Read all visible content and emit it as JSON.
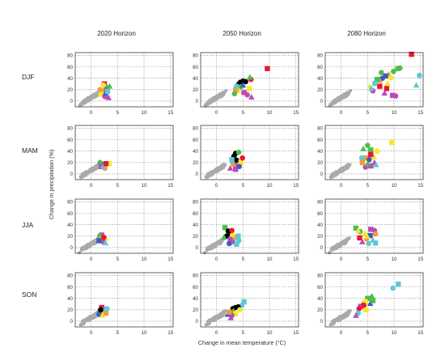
{
  "chart_data": {
    "type": "scatter",
    "layout": "grid of small multiples",
    "columns": [
      "2020 Horizon",
      "2050 Horizon",
      "2080 Horizon"
    ],
    "rows": [
      "DJF",
      "MAM",
      "JJA",
      "SON"
    ],
    "xlabel": "Change in mean temperature (°C)",
    "ylabel": "Change in precipitation (%)",
    "xlim": [
      -3,
      15.5
    ],
    "ylim": [
      -10,
      85
    ],
    "xticks": [
      "0",
      "5",
      "10",
      "15"
    ],
    "yticks": [
      "0",
      "20",
      "40",
      "60",
      "80"
    ],
    "grid": true,
    "colors": {
      "baseline": "#aaaaaa",
      "red": "#e8192c",
      "green": "#4dbd4d",
      "magenta": "#b84cb8",
      "yellow": "#f5e928",
      "orange": "#f49a3c",
      "blue": "#3a5dbf",
      "cyan": "#5ec8d8",
      "black": "#000000"
    },
    "panels": [
      {
        "row": "DJF",
        "column": "2020 Horizon",
        "points": [
          [
            2.5,
            30,
            "red"
          ],
          [
            2.8,
            25,
            "green"
          ],
          [
            2.2,
            18,
            "orange"
          ],
          [
            1.9,
            12,
            "yellow"
          ],
          [
            2.6,
            8,
            "magenta"
          ],
          [
            3.3,
            6,
            "magenta"
          ],
          [
            2.9,
            20,
            "magenta"
          ],
          [
            2.3,
            28,
            "yellow"
          ],
          [
            2.7,
            14,
            "blue"
          ],
          [
            3.1,
            17,
            "cyan"
          ],
          [
            1.7,
            20,
            "orange"
          ],
          [
            3.5,
            26,
            "green"
          ]
        ]
      },
      {
        "row": "DJF",
        "column": "2050 Horizon",
        "points": [
          [
            9.6,
            57,
            "red"
          ],
          [
            6.5,
            38,
            "red"
          ],
          [
            6.3,
            42,
            "green"
          ],
          [
            4.5,
            33,
            "black"
          ],
          [
            5,
            35,
            "black"
          ],
          [
            5.5,
            34,
            "black"
          ],
          [
            4.2,
            30,
            "black"
          ],
          [
            4.6,
            25,
            "green"
          ],
          [
            4.2,
            18,
            "yellow"
          ],
          [
            3.6,
            20,
            "orange"
          ],
          [
            5.8,
            11,
            "magenta"
          ],
          [
            6.6,
            7,
            "magenta"
          ],
          [
            5.2,
            15,
            "magenta"
          ],
          [
            3.8,
            26,
            "cyan"
          ],
          [
            5,
            28,
            "blue"
          ],
          [
            6.2,
            22,
            "yellow"
          ],
          [
            3.4,
            13,
            "green"
          ]
        ]
      },
      {
        "row": "DJF",
        "column": "2080 Horizon",
        "points": [
          [
            13.3,
            82,
            "red"
          ],
          [
            14.8,
            45,
            "cyan"
          ],
          [
            14.2,
            28,
            "cyan"
          ],
          [
            10.7,
            57,
            "green"
          ],
          [
            9.9,
            52,
            "green"
          ],
          [
            9,
            47,
            "orange"
          ],
          [
            8.4,
            44,
            "blue"
          ],
          [
            7.8,
            40,
            "blue"
          ],
          [
            7.3,
            36,
            "orange"
          ],
          [
            6.8,
            38,
            "green"
          ],
          [
            9.4,
            41,
            "yellow"
          ],
          [
            8.8,
            31,
            "yellow"
          ],
          [
            7.3,
            26,
            "red"
          ],
          [
            6,
            18,
            "magenta"
          ],
          [
            8.2,
            14,
            "magenta"
          ],
          [
            9.7,
            10,
            "magenta"
          ],
          [
            10.3,
            9,
            "magenta"
          ],
          [
            5.4,
            26,
            "yellow"
          ],
          [
            6.4,
            31,
            "cyan"
          ],
          [
            7.6,
            50,
            "green"
          ],
          [
            5.7,
            22,
            "cyan"
          ],
          [
            8.6,
            22,
            "red"
          ],
          [
            11.1,
            58,
            "green"
          ]
        ]
      },
      {
        "row": "MAM",
        "column": "2020 Horizon",
        "points": [
          [
            3.4,
            18,
            "yellow"
          ],
          [
            1.7,
            20,
            "green"
          ],
          [
            2.2,
            16,
            "blue"
          ],
          [
            1.9,
            13,
            "magenta"
          ],
          [
            2.6,
            10,
            "orange"
          ],
          [
            2.3,
            14,
            "cyan"
          ],
          [
            2.8,
            18,
            "red"
          ]
        ]
      },
      {
        "row": "MAM",
        "column": "2050 Horizon",
        "points": [
          [
            3.6,
            36,
            "black"
          ],
          [
            3.3,
            31,
            "black"
          ],
          [
            3.2,
            27,
            "black"
          ],
          [
            3.8,
            24,
            "black"
          ],
          [
            4.2,
            38,
            "green"
          ],
          [
            3.1,
            21,
            "green"
          ],
          [
            4.6,
            20,
            "yellow"
          ],
          [
            3.6,
            15,
            "magenta"
          ],
          [
            2.6,
            10,
            "magenta"
          ],
          [
            3.6,
            8,
            "magenta"
          ],
          [
            4.3,
            13,
            "blue"
          ],
          [
            3.2,
            17,
            "orange"
          ],
          [
            2.9,
            25,
            "cyan"
          ],
          [
            4.9,
            28,
            "red"
          ]
        ]
      },
      {
        "row": "MAM",
        "column": "2080 Horizon",
        "points": [
          [
            9.6,
            55,
            "yellow"
          ],
          [
            5,
            50,
            "green"
          ],
          [
            4.2,
            44,
            "green"
          ],
          [
            5.6,
            42,
            "green"
          ],
          [
            6.8,
            40,
            "yellow"
          ],
          [
            6.2,
            30,
            "yellow"
          ],
          [
            4.6,
            28,
            "orange"
          ],
          [
            5.3,
            25,
            "blue"
          ],
          [
            6.3,
            20,
            "magenta"
          ],
          [
            5.6,
            14,
            "magenta"
          ],
          [
            4.6,
            12,
            "magenta"
          ],
          [
            6.6,
            16,
            "cyan"
          ],
          [
            5.6,
            34,
            "red"
          ],
          [
            3.9,
            28,
            "cyan"
          ],
          [
            5,
            18,
            "green"
          ],
          [
            4,
            20,
            "orange"
          ]
        ]
      },
      {
        "row": "JJA",
        "column": "2020 Horizon",
        "points": [
          [
            2,
            22,
            "magenta"
          ],
          [
            1.6,
            20,
            "green"
          ],
          [
            2.8,
            16,
            "yellow"
          ],
          [
            1.9,
            15,
            "orange"
          ],
          [
            2.3,
            10,
            "magenta"
          ],
          [
            2.7,
            8,
            "cyan"
          ],
          [
            1.5,
            12,
            "blue"
          ],
          [
            2.4,
            18,
            "red"
          ]
        ]
      },
      {
        "row": "JJA",
        "column": "2050 Horizon",
        "points": [
          [
            1.6,
            35,
            "green"
          ],
          [
            2.2,
            29,
            "black"
          ],
          [
            2.6,
            24,
            "black"
          ],
          [
            1.9,
            20,
            "black"
          ],
          [
            3,
            22,
            "yellow"
          ],
          [
            3.6,
            18,
            "orange"
          ],
          [
            4.1,
            20,
            "cyan"
          ],
          [
            4.2,
            12,
            "cyan"
          ],
          [
            3.3,
            10,
            "magenta"
          ],
          [
            2.6,
            14,
            "magenta"
          ],
          [
            2.4,
            7,
            "blue"
          ],
          [
            1.4,
            18,
            "green"
          ],
          [
            3.8,
            6,
            "cyan"
          ],
          [
            2.9,
            30,
            "red"
          ]
        ]
      },
      {
        "row": "JJA",
        "column": "2080 Horizon",
        "points": [
          [
            2.8,
            34,
            "green"
          ],
          [
            3.6,
            28,
            "green"
          ],
          [
            3.2,
            30,
            "yellow"
          ],
          [
            5.6,
            32,
            "magenta"
          ],
          [
            6.3,
            30,
            "magenta"
          ],
          [
            4.5,
            25,
            "yellow"
          ],
          [
            5.5,
            21,
            "blue"
          ],
          [
            4.8,
            15,
            "orange"
          ],
          [
            6,
            13,
            "cyan"
          ],
          [
            6.5,
            8,
            "cyan"
          ],
          [
            5.2,
            7,
            "cyan"
          ],
          [
            4,
            10,
            "magenta"
          ],
          [
            3.5,
            17,
            "red"
          ],
          [
            6.5,
            24,
            "orange"
          ],
          [
            4.9,
            20,
            "yellow"
          ]
        ]
      },
      {
        "row": "SON",
        "column": "2020 Horizon",
        "points": [
          [
            2,
            24,
            "red"
          ],
          [
            2.4,
            21,
            "magenta"
          ],
          [
            2.6,
            19,
            "cyan"
          ],
          [
            1.6,
            16,
            "green"
          ],
          [
            1.5,
            12,
            "blue"
          ],
          [
            2.1,
            10,
            "yellow"
          ],
          [
            2.8,
            14,
            "orange"
          ],
          [
            3,
            22,
            "cyan"
          ],
          [
            1.8,
            20,
            "black"
          ]
        ]
      },
      {
        "row": "SON",
        "column": "2050 Horizon",
        "points": [
          [
            5.2,
            34,
            "cyan"
          ],
          [
            4.8,
            28,
            "cyan"
          ],
          [
            3.6,
            24,
            "black"
          ],
          [
            3.1,
            22,
            "black"
          ],
          [
            4.1,
            25,
            "black"
          ],
          [
            3.2,
            18,
            "green"
          ],
          [
            3.6,
            13,
            "yellow"
          ],
          [
            2.9,
            10,
            "magenta"
          ],
          [
            2.1,
            12,
            "blue"
          ],
          [
            2.4,
            16,
            "orange"
          ],
          [
            4.4,
            20,
            "yellow"
          ],
          [
            2.7,
            6,
            "magenta"
          ]
        ]
      },
      {
        "row": "SON",
        "column": "2080 Horizon",
        "points": [
          [
            10.8,
            65,
            "cyan"
          ],
          [
            9.8,
            58,
            "cyan"
          ],
          [
            5.8,
            44,
            "green"
          ],
          [
            5,
            40,
            "green"
          ],
          [
            4.6,
            35,
            "yellow"
          ],
          [
            4,
            30,
            "orange"
          ],
          [
            3.7,
            26,
            "magenta"
          ],
          [
            3.4,
            22,
            "red"
          ],
          [
            5.5,
            31,
            "blue"
          ],
          [
            4.7,
            20,
            "yellow"
          ],
          [
            3.2,
            14,
            "cyan"
          ],
          [
            2.8,
            10,
            "magenta"
          ],
          [
            6,
            36,
            "green"
          ],
          [
            4.3,
            28,
            "red"
          ]
        ]
      }
    ]
  }
}
